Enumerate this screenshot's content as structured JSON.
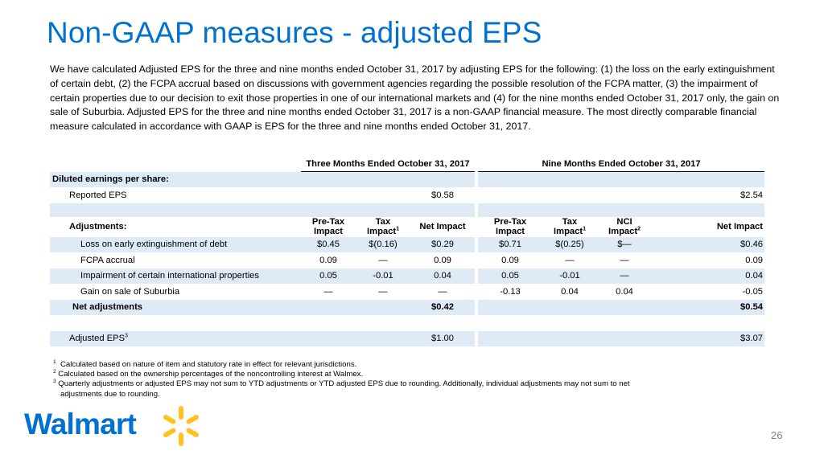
{
  "title": "Non-GAAP measures - adjusted EPS",
  "intro": "We have calculated Adjusted EPS for the three and nine months ended October 31, 2017 by adjusting EPS for the following: (1) the loss on the early extinguishment of certain debt, (2) the FCPA accrual based on discussions with government agencies regarding the possible resolution of the FCPA matter, (3) the impairment of certain properties due to our decision to exit those properties in one of our international markets and (4) for the nine months ended October 31, 2017 only, the gain on sale of Suburbia.  Adjusted EPS for the three and nine months ended October 31, 2017 is a non-GAAP financial measure. The most directly comparable financial measure calculated in accordance with GAAP is EPS for the three and nine months ended October 31, 2017.",
  "table": {
    "period_headers": {
      "three": "Three Months Ended October 31, 2017",
      "nine": "Nine Months Ended October 31, 2017"
    },
    "diluted_label": "Diluted earnings per share:",
    "reported": {
      "label": "Reported EPS",
      "three": "$0.58",
      "nine": "$2.54"
    },
    "adjustments_label": "Adjustments:",
    "col_headers": {
      "pretax_line1": "Pre-Tax",
      "pretax_line2": "Impact",
      "tax_line1": "Tax",
      "tax_line2": "Impact",
      "nci_line1": "NCI",
      "nci_line2": "Impact",
      "net": "Net Impact",
      "sup1": "1",
      "sup2": "2"
    },
    "rows": [
      {
        "label": "Loss on early extinguishment of debt",
        "t_pretax": "$0.45",
        "t_tax": "$(0.16)",
        "t_net": "$0.29",
        "n_pretax": "$0.71",
        "n_tax": "$(0.25)",
        "n_nci": "$—",
        "n_net": "$0.46"
      },
      {
        "label": "FCPA accrual",
        "t_pretax": "0.09",
        "t_tax": "—",
        "t_net": "0.09",
        "n_pretax": "0.09",
        "n_tax": "—",
        "n_nci": "—",
        "n_net": "0.09"
      },
      {
        "label": "Impairment of certain international properties",
        "t_pretax": "0.05",
        "t_tax": "-0.01",
        "t_net": "0.04",
        "n_pretax": "0.05",
        "n_tax": "-0.01",
        "n_nci": "—",
        "n_net": "0.04"
      },
      {
        "label": "Gain on sale of Suburbia",
        "t_pretax": "—",
        "t_tax": "—",
        "t_net": "—",
        "n_pretax": "-0.13",
        "n_tax": "0.04",
        "n_nci": "0.04",
        "n_net": "-0.05"
      }
    ],
    "net_adjustments": {
      "label": "Net adjustments",
      "three": "$0.42",
      "nine": "$0.54"
    },
    "adjusted": {
      "label": "Adjusted EPS",
      "sup": "3",
      "three": "$1.00",
      "nine": "$3.07"
    }
  },
  "footnotes": {
    "n1_mark": "1",
    "n1": "Calculated based on nature of item and statutory rate in effect for relevant jurisdictions.",
    "n2_mark": "2",
    "n2": "Calculated based on the ownership percentages of the noncontrolling interest at Walmex.",
    "n3_mark": "3",
    "n3_a": "Quarterly adjustments or adjusted EPS may not sum to YTD adjustments or YTD adjusted EPS due to rounding.  Additionally, individual adjustments may not sum to net",
    "n3_b": "adjustments due to rounding."
  },
  "logo": {
    "text": "Walmart",
    "color": "#0071ce",
    "spark_color": "#ffc220"
  },
  "page_number": "26"
}
